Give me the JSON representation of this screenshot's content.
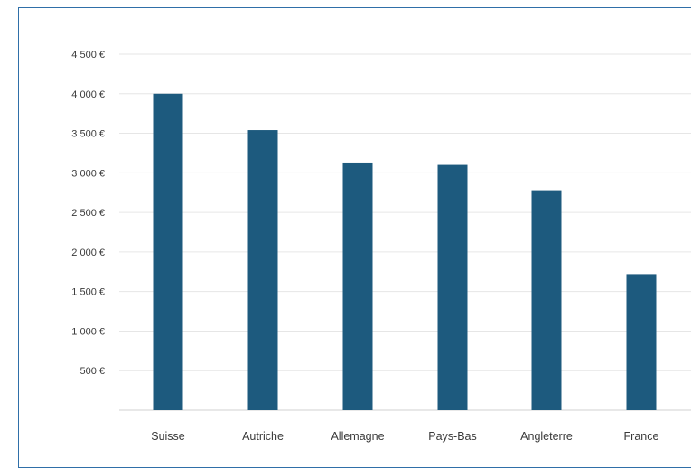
{
  "chart_data": {
    "type": "bar",
    "categories": [
      "Suisse",
      "Autriche",
      "Allemagne",
      "Pays-Bas",
      "Angleterre",
      "France"
    ],
    "values": [
      4000,
      3540,
      3130,
      3100,
      2780,
      1720
    ],
    "yticks": [
      0,
      500,
      1000,
      1500,
      2000,
      2500,
      3000,
      3500,
      4000,
      4500
    ],
    "ytick_labels": [
      "",
      "500 €",
      "1 000 €",
      "1 500 €",
      "2 000 €",
      "2 500 €",
      "3 000 €",
      "3 500 €",
      "4 000 €",
      "4 500 €"
    ],
    "ylim": [
      0,
      4500
    ],
    "grid": true,
    "bar_color": "#1d5a7e",
    "grid_color": "#e6e6e6"
  }
}
